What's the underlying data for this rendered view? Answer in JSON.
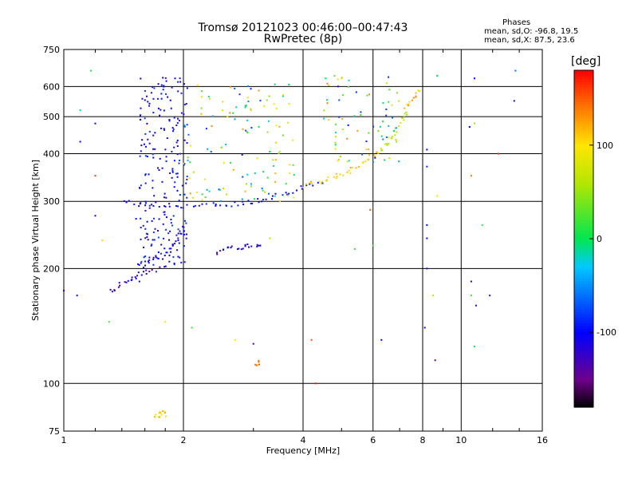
{
  "header": {
    "title_line1": "Tromsø 20121023 00:46:00–00:47:43",
    "title_line2": "RwPretec (8p)",
    "phases_title": "Phases",
    "phases_line1": "mean, sd,O: -96.8, 19.5",
    "phases_line2": "mean, sd,X:  87.5, 23.6"
  },
  "chart_data": {
    "type": "scatter",
    "title": "Tromsø 20121023 00:46:00–00:47:43",
    "subtitle": "RwPretec (8p)",
    "xlabel": "Frequency [MHz]",
    "ylabel": "Stationary phase Virtual Height [km]",
    "x_scale": "log",
    "y_scale": "log",
    "xlim": [
      1,
      16
    ],
    "ylim": [
      75,
      750
    ],
    "x_ticks": [
      1,
      2,
      4,
      6,
      8,
      10,
      16
    ],
    "y_ticks": [
      75,
      100,
      200,
      300,
      400,
      500,
      600,
      750
    ],
    "x_gridlines": [
      2,
      4,
      6,
      8,
      10
    ],
    "y_gridlines": [
      100,
      200,
      300,
      400,
      500,
      600
    ],
    "grid": true,
    "colorbar": {
      "label": "[deg]",
      "ticks": [
        100,
        0,
        -100
      ],
      "range": [
        -180,
        180
      ]
    },
    "traces": [
      {
        "x": [
          1.42,
          1.6,
          1.8,
          2.0,
          2.3,
          2.6,
          2.9,
          3.2,
          3.6,
          4.0,
          4.5
        ],
        "y": [
          300,
          293,
          292,
          292,
          293,
          294,
          298,
          305,
          315,
          325,
          335
        ],
        "phase": -100
      },
      {
        "x": [
          4.0,
          4.4,
          4.8,
          5.2,
          5.6,
          6.0,
          6.3
        ],
        "y": [
          330,
          338,
          348,
          360,
          375,
          395,
          410
        ],
        "phase": 110
      },
      {
        "x": [
          6.3,
          6.6,
          6.9,
          7.1,
          7.3
        ],
        "y": [
          410,
          435,
          460,
          490,
          520
        ],
        "phase": 70
      },
      {
        "x": [
          7.3,
          7.6,
          7.9
        ],
        "y": [
          530,
          560,
          590
        ],
        "phase": 120
      },
      {
        "x": [
          1.3,
          1.4,
          1.5,
          1.6,
          1.7
        ],
        "y": [
          175,
          182,
          188,
          195,
          200
        ],
        "phase": -120
      },
      {
        "x": [
          1.55,
          1.65,
          1.75,
          1.85,
          1.95,
          2.0
        ],
        "y": [
          205,
          210,
          215,
          225,
          240,
          260
        ],
        "phase": -105
      },
      {
        "x": [
          2.4,
          2.6,
          2.8,
          3.0,
          3.2
        ],
        "y": [
          220,
          225,
          228,
          230,
          232
        ],
        "phase": -115
      },
      {
        "x": [
          1.7,
          1.75,
          1.8
        ],
        "y": [
          82,
          84,
          83
        ],
        "phase": 110
      },
      {
        "x": [
          3.05,
          3.1
        ],
        "y": [
          112,
          114
        ],
        "phase": 140
      }
    ],
    "points": [
      {
        "x": 1.17,
        "y": 660,
        "phase": 10
      },
      {
        "x": 1.1,
        "y": 520,
        "phase": -20
      },
      {
        "x": 1.2,
        "y": 480,
        "phase": -100
      },
      {
        "x": 1.1,
        "y": 430,
        "phase": -100
      },
      {
        "x": 1.2,
        "y": 350,
        "phase": 160
      },
      {
        "x": 1.2,
        "y": 275,
        "phase": -120
      },
      {
        "x": 1.25,
        "y": 237,
        "phase": 110
      },
      {
        "x": 1.08,
        "y": 170,
        "phase": -120
      },
      {
        "x": 1.3,
        "y": 145,
        "phase": 20
      },
      {
        "x": 1.8,
        "y": 145,
        "phase": 90
      },
      {
        "x": 2.1,
        "y": 140,
        "phase": 20
      },
      {
        "x": 2.7,
        "y": 130,
        "phase": 100
      },
      {
        "x": 3.0,
        "y": 127,
        "phase": -120
      },
      {
        "x": 4.2,
        "y": 130,
        "phase": 150
      },
      {
        "x": 4.3,
        "y": 100,
        "phase": 170
      },
      {
        "x": 4.8,
        "y": 640,
        "phase": 30
      },
      {
        "x": 5.0,
        "y": 630,
        "phase": 70
      },
      {
        "x": 5.9,
        "y": 285,
        "phase": 150
      },
      {
        "x": 6.0,
        "y": 230,
        "phase": 20
      },
      {
        "x": 6.3,
        "y": 130,
        "phase": -100
      },
      {
        "x": 8.2,
        "y": 410,
        "phase": -100
      },
      {
        "x": 8.2,
        "y": 370,
        "phase": -90
      },
      {
        "x": 8.2,
        "y": 260,
        "phase": -100
      },
      {
        "x": 8.2,
        "y": 240,
        "phase": -100
      },
      {
        "x": 8.2,
        "y": 200,
        "phase": -110
      },
      {
        "x": 8.1,
        "y": 140,
        "phase": -120
      },
      {
        "x": 8.6,
        "y": 115,
        "phase": -140
      },
      {
        "x": 8.5,
        "y": 170,
        "phase": 60
      },
      {
        "x": 8.7,
        "y": 310,
        "phase": 100
      },
      {
        "x": 8.7,
        "y": 640,
        "phase": 0
      },
      {
        "x": 10.8,
        "y": 630,
        "phase": -100
      },
      {
        "x": 10.5,
        "y": 470,
        "phase": -100
      },
      {
        "x": 10.8,
        "y": 480,
        "phase": 50
      },
      {
        "x": 10.6,
        "y": 350,
        "phase": 140
      },
      {
        "x": 11.3,
        "y": 260,
        "phase": 20
      },
      {
        "x": 10.6,
        "y": 185,
        "phase": -110
      },
      {
        "x": 10.6,
        "y": 170,
        "phase": 20
      },
      {
        "x": 10.9,
        "y": 160,
        "phase": -120
      },
      {
        "x": 11.8,
        "y": 170,
        "phase": -90
      },
      {
        "x": 10.8,
        "y": 125,
        "phase": 10
      },
      {
        "x": 12.4,
        "y": 400,
        "phase": 170
      },
      {
        "x": 13.7,
        "y": 660,
        "phase": -60
      },
      {
        "x": 13.6,
        "y": 550,
        "phase": -120
      },
      {
        "x": 1.0,
        "y": 175,
        "phase": -120
      },
      {
        "x": 1.52,
        "y": 270,
        "phase": -100
      },
      {
        "x": 1.55,
        "y": 185,
        "phase": -100
      },
      {
        "x": 3.3,
        "y": 240,
        "phase": 60
      },
      {
        "x": 3.5,
        "y": 300,
        "phase": 110
      },
      {
        "x": 5.4,
        "y": 225,
        "phase": 20
      },
      {
        "x": 4.9,
        "y": 600,
        "phase": -110
      }
    ]
  }
}
